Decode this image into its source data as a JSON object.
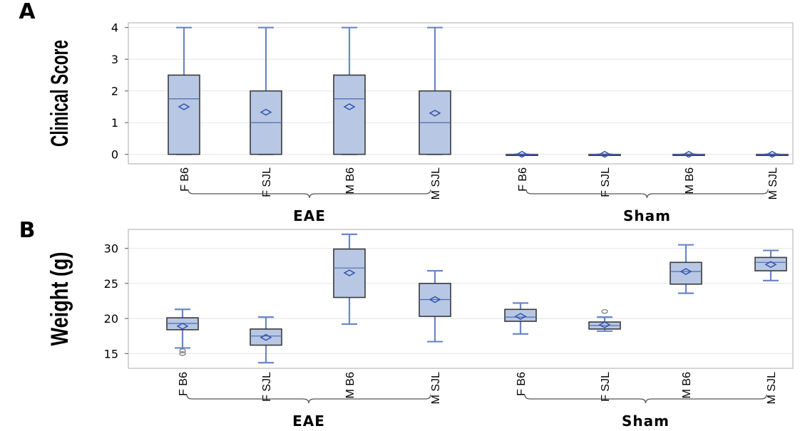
{
  "chart_data": [
    {
      "panel": "A",
      "type": "box",
      "ylabel": "Clinical Score",
      "ylim": [
        -0.3,
        4.15
      ],
      "yticks": [
        0,
        1,
        2,
        3,
        4
      ],
      "grid": true,
      "categories": [
        "F B6",
        "F SJL",
        "M B6",
        "M SJL",
        "F B6",
        "F SJL",
        "M B6",
        "M SJL"
      ],
      "groups": [
        {
          "label": "EAE",
          "start": 0,
          "end": 3
        },
        {
          "label": "Sham",
          "start": 4,
          "end": 7
        }
      ],
      "boxes": [
        {
          "min": 0,
          "q1": 0,
          "median": 1.75,
          "q3": 2.5,
          "max": 4,
          "mean": 1.5,
          "outliers": []
        },
        {
          "min": 0,
          "q1": 0,
          "median": 1,
          "q3": 2,
          "max": 4,
          "mean": 1.33,
          "outliers": []
        },
        {
          "min": 0,
          "q1": 0,
          "median": 1.75,
          "q3": 2.5,
          "max": 4,
          "mean": 1.5,
          "outliers": []
        },
        {
          "min": 0,
          "q1": 0,
          "median": 1,
          "q3": 2,
          "max": 4,
          "mean": 1.3,
          "outliers": []
        },
        {
          "min": 0,
          "q1": 0,
          "median": 0,
          "q3": 0,
          "max": 0,
          "mean": 0,
          "outliers": []
        },
        {
          "min": 0,
          "q1": 0,
          "median": 0,
          "q3": 0,
          "max": 0,
          "mean": 0,
          "outliers": []
        },
        {
          "min": 0,
          "q1": 0,
          "median": 0,
          "q3": 0,
          "max": 0,
          "mean": 0,
          "outliers": []
        },
        {
          "min": 0,
          "q1": 0,
          "median": 0,
          "q3": 0,
          "max": 0,
          "mean": 0,
          "outliers": []
        }
      ]
    },
    {
      "panel": "B",
      "type": "box",
      "ylabel": "Weight (g)",
      "ylim": [
        12.9,
        32.7
      ],
      "yticks": [
        15,
        20,
        25,
        30
      ],
      "grid": true,
      "categories": [
        "F B6",
        "F SJL",
        "M B6",
        "M SJL",
        "F B6",
        "F SJL",
        "M B6",
        "M SJL"
      ],
      "groups": [
        {
          "label": "EAE",
          "start": 0,
          "end": 3
        },
        {
          "label": "Sham",
          "start": 4,
          "end": 7
        }
      ],
      "boxes": [
        {
          "min": 15.8,
          "q1": 18.4,
          "median": 19.3,
          "q3": 20.1,
          "max": 21.3,
          "mean": 18.9,
          "outliers": [
            15.0,
            15.4
          ]
        },
        {
          "min": 13.7,
          "q1": 16.2,
          "median": 17.5,
          "q3": 18.5,
          "max": 20.2,
          "mean": 17.3,
          "outliers": []
        },
        {
          "min": 19.2,
          "q1": 23.0,
          "median": 27.2,
          "q3": 29.9,
          "max": 32.0,
          "mean": 26.5,
          "outliers": []
        },
        {
          "min": 16.7,
          "q1": 20.3,
          "median": 22.7,
          "q3": 25.0,
          "max": 26.8,
          "mean": 22.7,
          "outliers": []
        },
        {
          "min": 17.8,
          "q1": 19.6,
          "median": 20.2,
          "q3": 21.3,
          "max": 22.2,
          "mean": 20.3,
          "outliers": []
        },
        {
          "min": 18.2,
          "q1": 18.5,
          "median": 19.0,
          "q3": 19.5,
          "max": 20.2,
          "mean": 19.1,
          "outliers": [
            21.0
          ]
        },
        {
          "min": 23.6,
          "q1": 24.9,
          "median": 26.7,
          "q3": 28.0,
          "max": 30.5,
          "mean": 26.7,
          "outliers": []
        },
        {
          "min": 25.4,
          "q1": 26.8,
          "median": 28.0,
          "q3": 28.7,
          "max": 29.7,
          "mean": 27.7,
          "outliers": []
        }
      ]
    }
  ]
}
